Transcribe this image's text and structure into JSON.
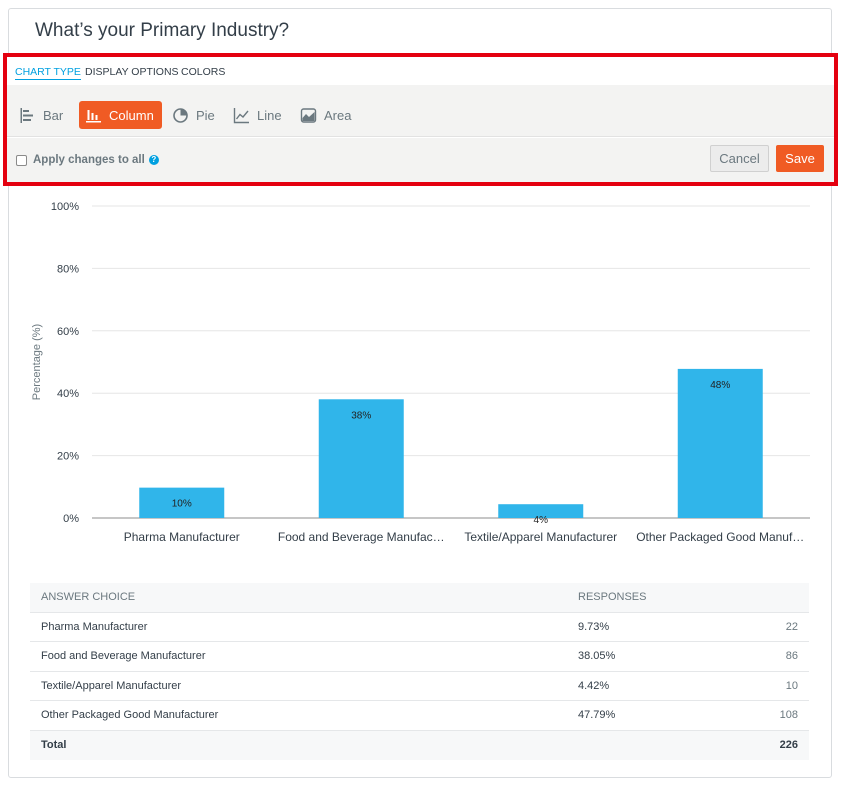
{
  "question": {
    "title": "What’s your Primary Industry?"
  },
  "editor": {
    "tabs": [
      {
        "label": "CHART TYPE",
        "active": true
      },
      {
        "label": "DISPLAY OPTIONS",
        "active": false
      },
      {
        "label": "COLORS",
        "active": false
      }
    ],
    "chart_types": [
      {
        "label": "Bar",
        "icon": "bar-chart-icon",
        "active": false
      },
      {
        "label": "Column",
        "icon": "column-chart-icon",
        "active": true
      },
      {
        "label": "Pie",
        "icon": "pie-chart-icon",
        "active": false
      },
      {
        "label": "Line",
        "icon": "line-chart-icon",
        "active": false
      },
      {
        "label": "Area",
        "icon": "area-chart-icon",
        "active": false
      }
    ],
    "apply_label": "Apply changes to all",
    "apply_checked": false,
    "cancel_label": "Cancel",
    "save_label": "Save",
    "accent_color": "#f05b24",
    "highlight_color": "#e4000f"
  },
  "chart_data": {
    "type": "bar",
    "categories": [
      "Pharma Manufacturer",
      "Food and Beverage Manufac…",
      "Textile/Apparel Manufacturer",
      "Other Packaged Good Manuf…"
    ],
    "values": [
      9.73,
      38.05,
      4.42,
      47.79
    ],
    "data_labels": [
      "10%",
      "38%",
      "4%",
      "48%"
    ],
    "ylabel": "Percentage (%)",
    "yticks": [
      "0%",
      "20%",
      "40%",
      "60%",
      "80%",
      "100%"
    ],
    "ylim": [
      0,
      100
    ],
    "grid": true,
    "bar_color": "#30b5ea"
  },
  "table": {
    "headers": [
      "ANSWER CHOICE",
      "RESPONSES",
      ""
    ],
    "rows": [
      {
        "choice": "Pharma Manufacturer",
        "percent": "9.73%",
        "count": "22"
      },
      {
        "choice": "Food and Beverage Manufacturer",
        "percent": "38.05%",
        "count": "86"
      },
      {
        "choice": "Textile/Apparel Manufacturer",
        "percent": "4.42%",
        "count": "10"
      },
      {
        "choice": "Other Packaged Good Manufacturer",
        "percent": "47.79%",
        "count": "108"
      }
    ],
    "total_label": "Total",
    "total_count": "226"
  }
}
